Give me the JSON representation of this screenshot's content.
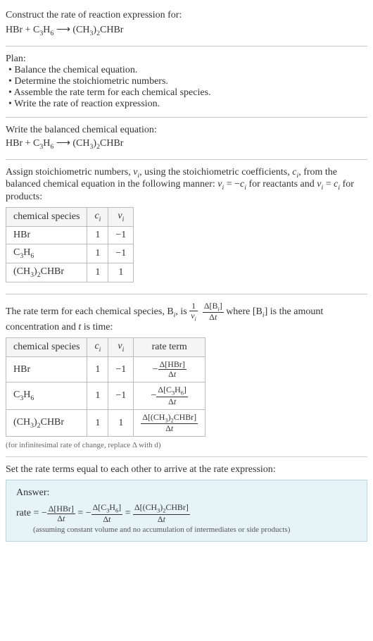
{
  "header": {
    "prompt": "Construct the rate of reaction expression for:",
    "equation_lhs_1": "HBr",
    "equation_plus": " + ",
    "equation_lhs_2_pre": "C",
    "equation_lhs_2_sub1": "3",
    "equation_lhs_2_mid": "H",
    "equation_lhs_2_sub2": "6",
    "equation_arrow": "  ⟶  ",
    "equation_rhs_pre": "(CH",
    "equation_rhs_sub1": "3",
    "equation_rhs_mid": ")",
    "equation_rhs_sub2": "2",
    "equation_rhs_end": "CHBr"
  },
  "plan": {
    "title": "Plan:",
    "items": [
      "Balance the chemical equation.",
      "Determine the stoichiometric numbers.",
      "Assemble the rate term for each chemical species.",
      "Write the rate of reaction expression."
    ]
  },
  "balanced": {
    "title": "Write the balanced chemical equation:"
  },
  "assign": {
    "text_1": "Assign stoichiometric numbers, ",
    "nu_i": "ν",
    "sub_i": "i",
    "text_2": ", using the stoichiometric coefficients, ",
    "c_i": "c",
    "text_3": ", from the balanced chemical equation in the following manner: ",
    "eq1_lhs": "ν",
    "eq1_eq": " = −",
    "eq1_rhs": "c",
    "text_4": " for reactants and ",
    "eq2_lhs": "ν",
    "eq2_eq": " = ",
    "eq2_rhs": "c",
    "text_5": " for products:",
    "table": {
      "headers": [
        "chemical species",
        "cᵢ",
        "νᵢ"
      ],
      "h0": "chemical species",
      "h1_c": "c",
      "h1_i": "i",
      "h2_nu": "ν",
      "h2_i": "i",
      "rows": [
        {
          "species": "HBr",
          "c": "1",
          "nu": "−1"
        },
        {
          "species_html": "C3H6",
          "c": "1",
          "nu": "−1"
        },
        {
          "species_html": "(CH3)2CHBr",
          "c": "1",
          "nu": "1"
        }
      ]
    }
  },
  "rate_term": {
    "text_1": "The rate term for each chemical species, B",
    "sub_i": "i",
    "text_2": ", is ",
    "frac1_num": "1",
    "frac1_den_nu": "ν",
    "frac1_den_i": "i",
    "frac2_num_d": "Δ[B",
    "frac2_num_i": "i",
    "frac2_num_end": "]",
    "frac2_den_d": "Δ",
    "frac2_den_t": "t",
    "text_3": " where [B",
    "text_4": "] is the amount concentration and ",
    "t": "t",
    "text_5": " is time:",
    "table": {
      "h0": "chemical species",
      "h1_c": "c",
      "h1_i": "i",
      "h2_nu": "ν",
      "h2_i": "i",
      "h3": "rate term",
      "rows": [
        {
          "c": "1",
          "nu": "−1",
          "sign": "−",
          "conc": "Δ[HBr]"
        },
        {
          "c": "1",
          "nu": "−1",
          "sign": "−",
          "conc_pre": "Δ[C",
          "conc_s1": "3",
          "conc_mid": "H",
          "conc_s2": "6",
          "conc_end": "]"
        },
        {
          "c": "1",
          "nu": "1",
          "sign": "",
          "conc_pre": "Δ[(CH",
          "conc_s1": "3",
          "conc_mid": ")",
          "conc_s2": "2",
          "conc_end": "CHBr]"
        }
      ]
    },
    "note": "(for infinitesimal rate of change, replace Δ with d)"
  },
  "final": {
    "title": "Set the rate terms equal to each other to arrive at the rate expression:",
    "answer_label": "Answer:",
    "rate_label": "rate = ",
    "neg": "−",
    "t1_num": "Δ[HBr]",
    "eq": " = ",
    "t2_num_pre": "Δ[C",
    "t2_s1": "3",
    "t2_mid": "H",
    "t2_s2": "6",
    "t2_end": "]",
    "t3_num_pre": "Δ[(CH",
    "t3_s1": "3",
    "t3_mid": ")",
    "t3_s2": "2",
    "t3_end": "CHBr]",
    "den_d": "Δ",
    "den_t": "t",
    "note": "(assuming constant volume and no accumulation of intermediates or side products)"
  }
}
